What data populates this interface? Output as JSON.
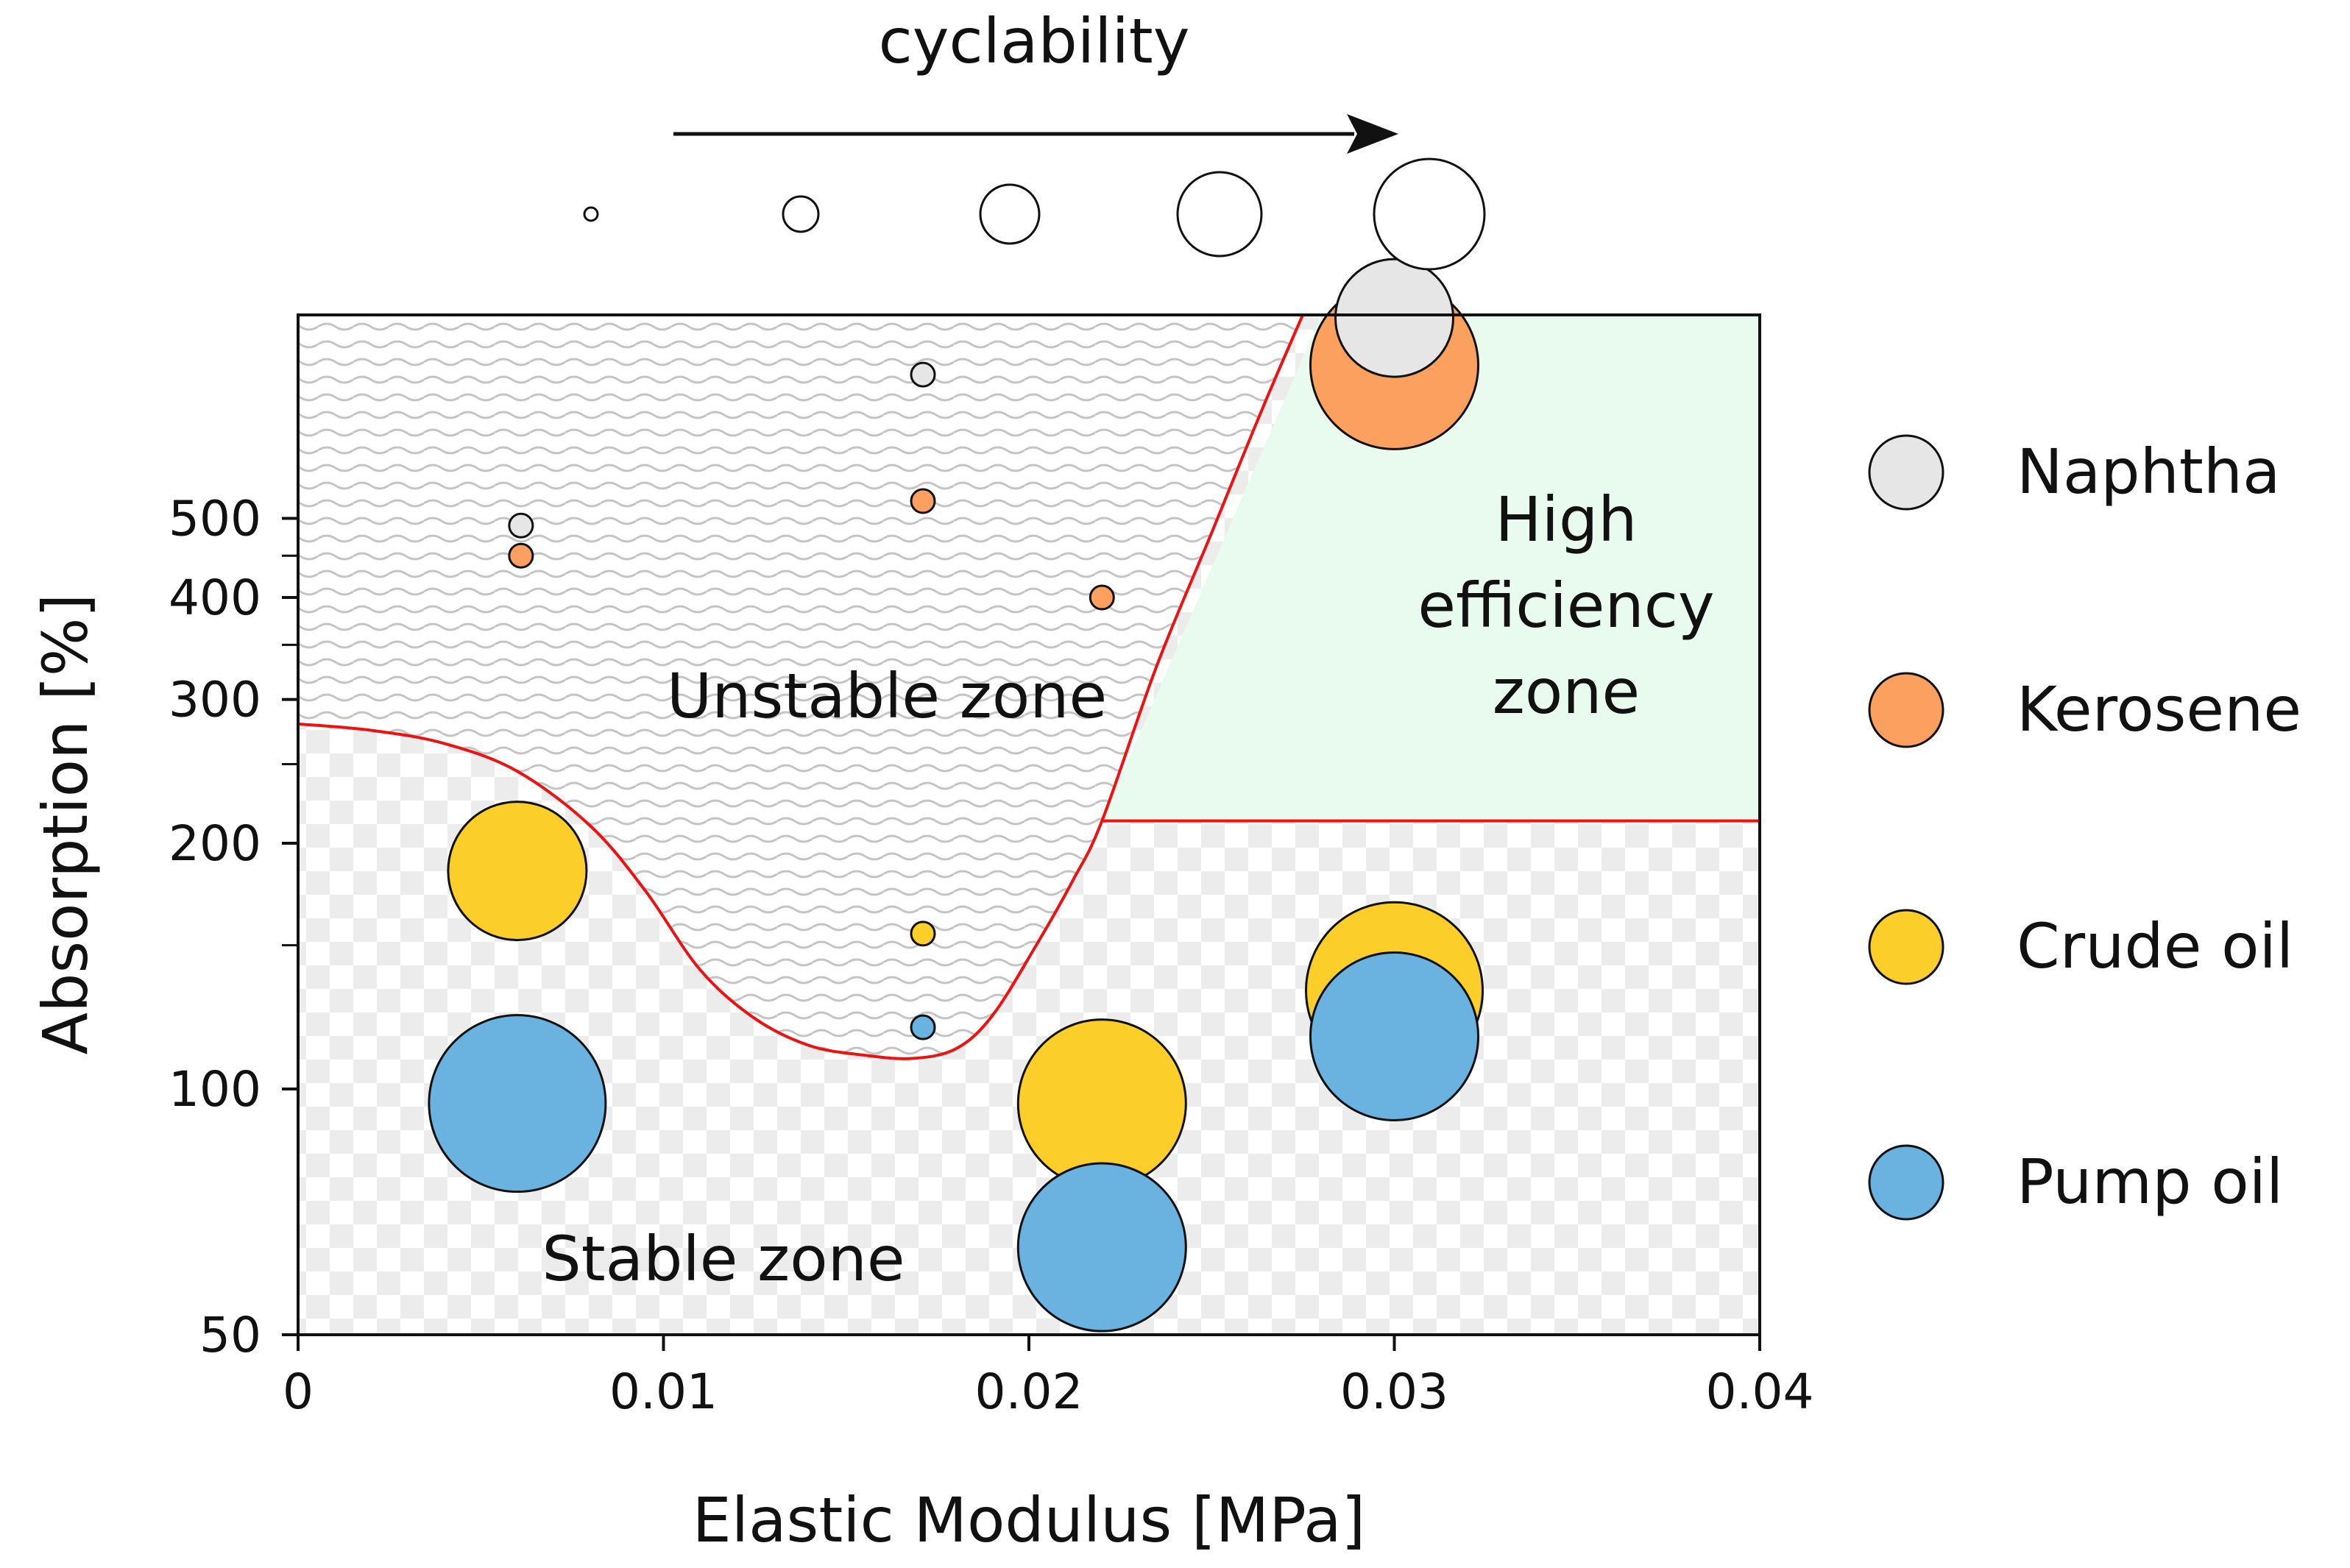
{
  "chart_data": {
    "type": "scatter",
    "title": "",
    "xlabel": "Elastic Modulus [MPa]",
    "ylabel": "Absorption [%]",
    "xlim": [
      0,
      0.04
    ],
    "ylim": [
      50,
      1000
    ],
    "yscale": "log",
    "grid": false,
    "x_ticks": [
      0,
      0.01,
      0.02,
      0.03,
      0.04
    ],
    "x_tick_labels": [
      "0",
      "0.01",
      "0.02",
      "0.03",
      "0.04"
    ],
    "y_ticks": [
      50,
      100,
      200,
      300,
      400,
      500
    ],
    "y_tick_labels": [
      "50",
      "100",
      "200",
      "300",
      "400",
      "500"
    ],
    "y_minor_ticks": [
      150,
      250,
      350,
      450
    ],
    "legend_position": "right",
    "size_legend": {
      "title": "cyclability",
      "levels": [
        1,
        2,
        3,
        4,
        5
      ]
    },
    "zones": {
      "unstable_label": "Unstable zone",
      "stable_label": "Stable zone",
      "high_efficiency_label": [
        "High",
        "efficiency",
        "zone"
      ],
      "high_efficiency_min_absorption": 213,
      "high_efficiency_min_modulus": 0.022,
      "colors": {
        "boundary": "#ee1111",
        "high_efficiency_fill": "#e8fbee"
      }
    },
    "series": [
      {
        "name": "Naphtha",
        "color": "#e6e6e6",
        "points": [
          {
            "x": 0.0061,
            "y": 490,
            "size": 1
          },
          {
            "x": 0.0171,
            "y": 750,
            "size": 1
          },
          {
            "x": 0.03,
            "y": 880,
            "size": 3
          }
        ]
      },
      {
        "name": "Kerosene",
        "color": "#fca060",
        "points": [
          {
            "x": 0.0061,
            "y": 450,
            "size": 1
          },
          {
            "x": 0.0171,
            "y": 525,
            "size": 1
          },
          {
            "x": 0.022,
            "y": 400,
            "size": 1
          },
          {
            "x": 0.03,
            "y": 770,
            "size": 5
          }
        ]
      },
      {
        "name": "Crude oil",
        "color": "#fcce29",
        "points": [
          {
            "x": 0.006,
            "y": 185,
            "size": 4
          },
          {
            "x": 0.0171,
            "y": 155,
            "size": 1
          },
          {
            "x": 0.022,
            "y": 96,
            "size": 5
          },
          {
            "x": 0.03,
            "y": 132,
            "size": 6
          }
        ]
      },
      {
        "name": "Pump oil",
        "color": "#6ab3e0",
        "points": [
          {
            "x": 0.006,
            "y": 96,
            "size": 6
          },
          {
            "x": 0.0171,
            "y": 119,
            "size": 1
          },
          {
            "x": 0.022,
            "y": 64,
            "size": 5
          },
          {
            "x": 0.03,
            "y": 116,
            "size": 5
          }
        ]
      }
    ]
  }
}
